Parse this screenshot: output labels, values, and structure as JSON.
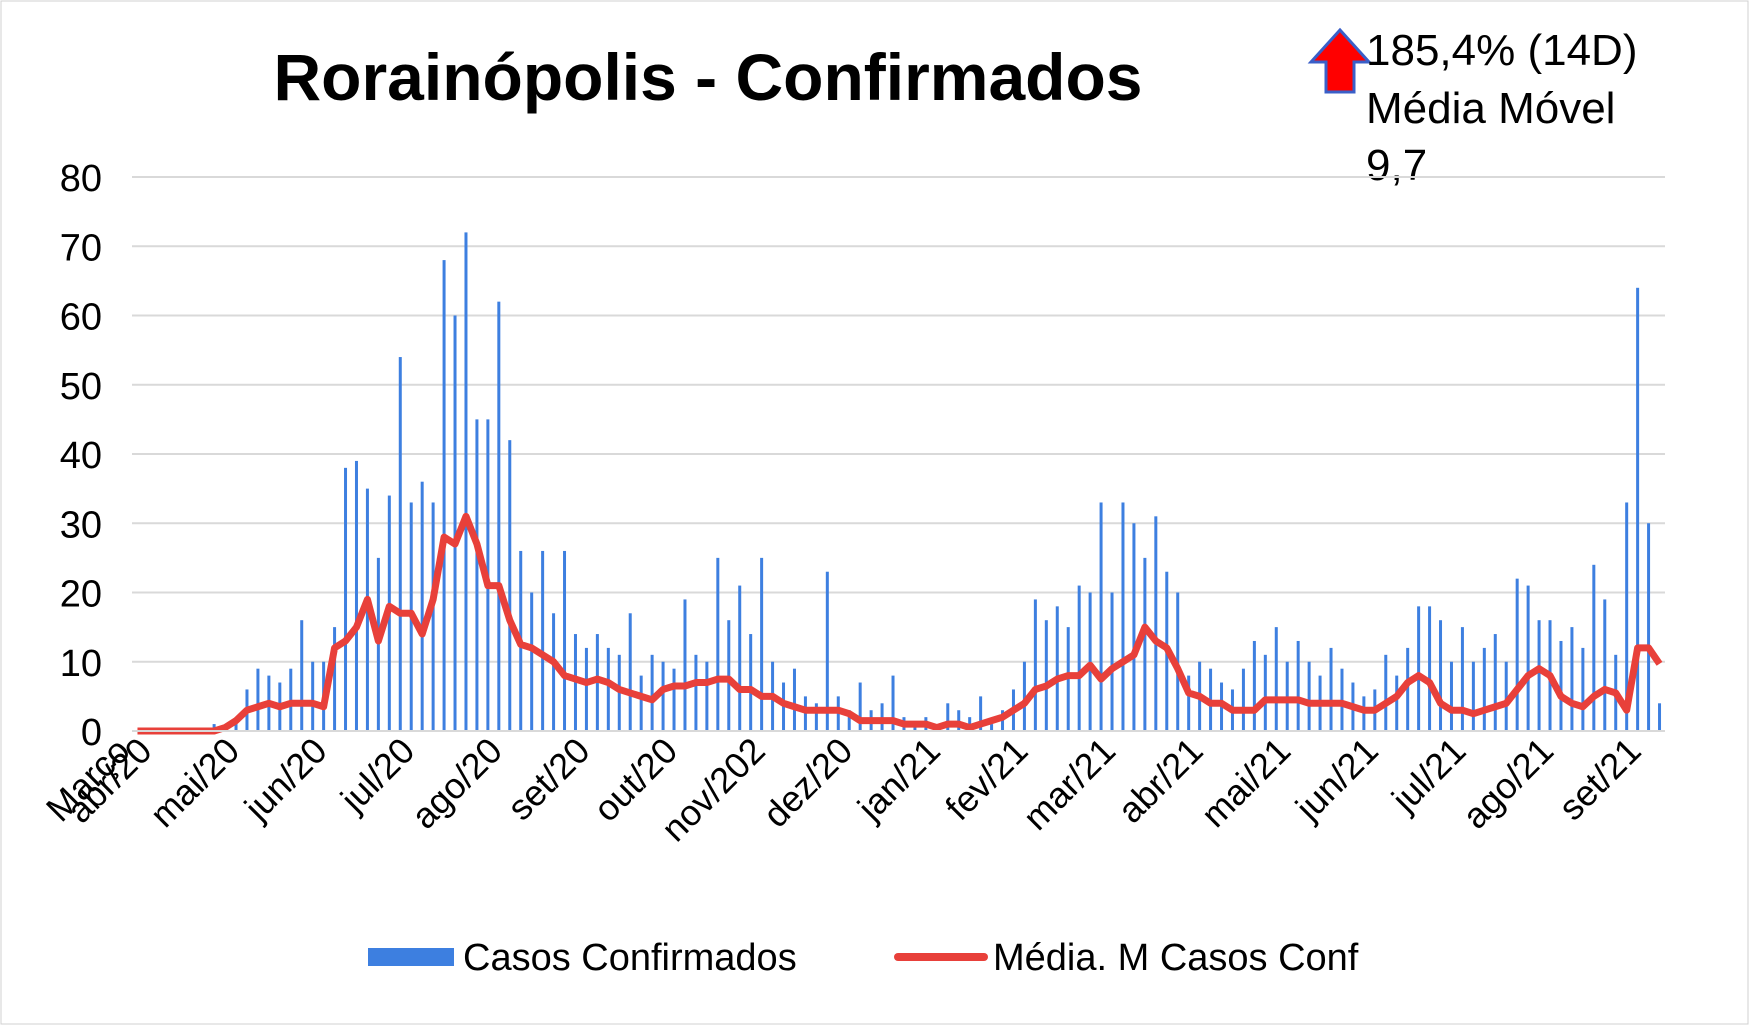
{
  "chart_data": {
    "type": "bar_line",
    "title": "Rorainópolis - Confirmados",
    "annotation": [
      "185,4% (14D)",
      "Média Móvel",
      "9,7"
    ],
    "categories": [
      "Março",
      null,
      "abr/20",
      null,
      null,
      null,
      null,
      null,
      null,
      null,
      "mai/20",
      null,
      null,
      null,
      null,
      null,
      null,
      null,
      "jun/20",
      null,
      null,
      null,
      null,
      null,
      null,
      null,
      "jul/20",
      null,
      null,
      null,
      null,
      null,
      null,
      null,
      "ago/20",
      null,
      null,
      null,
      null,
      null,
      null,
      null,
      "set/20",
      null,
      null,
      null,
      null,
      null,
      null,
      null,
      "out/20",
      null,
      null,
      null,
      null,
      null,
      null,
      null,
      "nov/202",
      null,
      null,
      null,
      null,
      null,
      null,
      null,
      "dez/20",
      null,
      null,
      null,
      null,
      null,
      null,
      null,
      "jan/21",
      null,
      null,
      null,
      null,
      null,
      null,
      null,
      "fev/21",
      null,
      null,
      null,
      null,
      null,
      null,
      null,
      "mar/21",
      null,
      null,
      null,
      null,
      null,
      null,
      null,
      "abr/21",
      null,
      null,
      null,
      null,
      null,
      null,
      null,
      "mai/21",
      null,
      null,
      null,
      null,
      null,
      null,
      null,
      "jun/21",
      null,
      null,
      null,
      null,
      null,
      null,
      null,
      "jul/21",
      null,
      null,
      null,
      null,
      null,
      null,
      null,
      "ago/21",
      null,
      null,
      null,
      null,
      null,
      null,
      null,
      "set/21",
      null
    ],
    "series": [
      {
        "name": "Casos Confirmados",
        "kind": "bar",
        "color": "#3d7fe0",
        "values": [
          0,
          0,
          0,
          0,
          0,
          0,
          0,
          1,
          0,
          2,
          6,
          9,
          8,
          7,
          9,
          16,
          10,
          10,
          15,
          38,
          39,
          35,
          25,
          34,
          54,
          33,
          36,
          33,
          68,
          60,
          72,
          45,
          45,
          62,
          42,
          26,
          20,
          26,
          17,
          26,
          14,
          12,
          14,
          12,
          11,
          17,
          8,
          11,
          10,
          9,
          19,
          11,
          10,
          25,
          16,
          21,
          14,
          25,
          10,
          7,
          9,
          5,
          4,
          23,
          5,
          3,
          7,
          3,
          4,
          8,
          2,
          1,
          2,
          1,
          4,
          3,
          2,
          5,
          1,
          3,
          6,
          10,
          19,
          16,
          18,
          15,
          21,
          20,
          33,
          20,
          33,
          30,
          25,
          31,
          23,
          20,
          8,
          10,
          9,
          7,
          6,
          9,
          13,
          11,
          15,
          10,
          13,
          10,
          8,
          12,
          9,
          7,
          5,
          6,
          11,
          8,
          12,
          18,
          18,
          16,
          10,
          15,
          10,
          12,
          14,
          10,
          22,
          21,
          16,
          16,
          13,
          15,
          12,
          24,
          19,
          11,
          33,
          64,
          30,
          4
        ]
      },
      {
        "name": "Média. M Casos Conf",
        "kind": "line",
        "color": "#e8403a",
        "values": [
          0,
          0,
          0,
          0,
          0,
          0,
          0,
          0,
          0.5,
          1.5,
          3,
          3.5,
          4,
          3.5,
          4,
          4,
          4,
          3.5,
          12,
          13,
          15,
          19,
          13,
          18,
          17,
          17,
          14,
          19,
          28,
          27,
          31,
          27,
          21,
          21,
          16,
          12.5,
          12,
          11,
          10,
          8,
          7.5,
          7,
          7.5,
          7,
          6,
          5.5,
          5,
          4.5,
          6,
          6.5,
          6.5,
          7,
          7,
          7.5,
          7.5,
          6,
          6,
          5,
          5,
          4,
          3.5,
          3,
          3,
          3,
          3,
          2.5,
          1.5,
          1.5,
          1.5,
          1.5,
          1,
          1,
          1,
          0.5,
          1,
          1,
          0.5,
          1,
          1.5,
          2,
          3,
          4,
          6,
          6.5,
          7.5,
          8,
          8,
          9.5,
          7.5,
          9,
          10,
          11,
          15,
          13,
          12,
          9,
          5.5,
          5,
          4,
          4,
          3,
          3,
          3,
          4.5,
          4.5,
          4.5,
          4.5,
          4,
          4,
          4,
          4,
          3.5,
          3,
          3,
          4,
          5,
          7,
          8,
          7,
          4,
          3,
          3,
          2.5,
          3,
          3.5,
          4,
          6,
          8,
          9,
          8,
          5,
          4,
          3.5,
          5,
          6,
          5.5,
          3,
          12,
          12,
          9.7
        ]
      }
    ],
    "ylim": [
      0,
      80
    ],
    "yticks": [
      0,
      10,
      20,
      30,
      40,
      50,
      60,
      70,
      80
    ],
    "grid": true,
    "legend": "bottom"
  }
}
